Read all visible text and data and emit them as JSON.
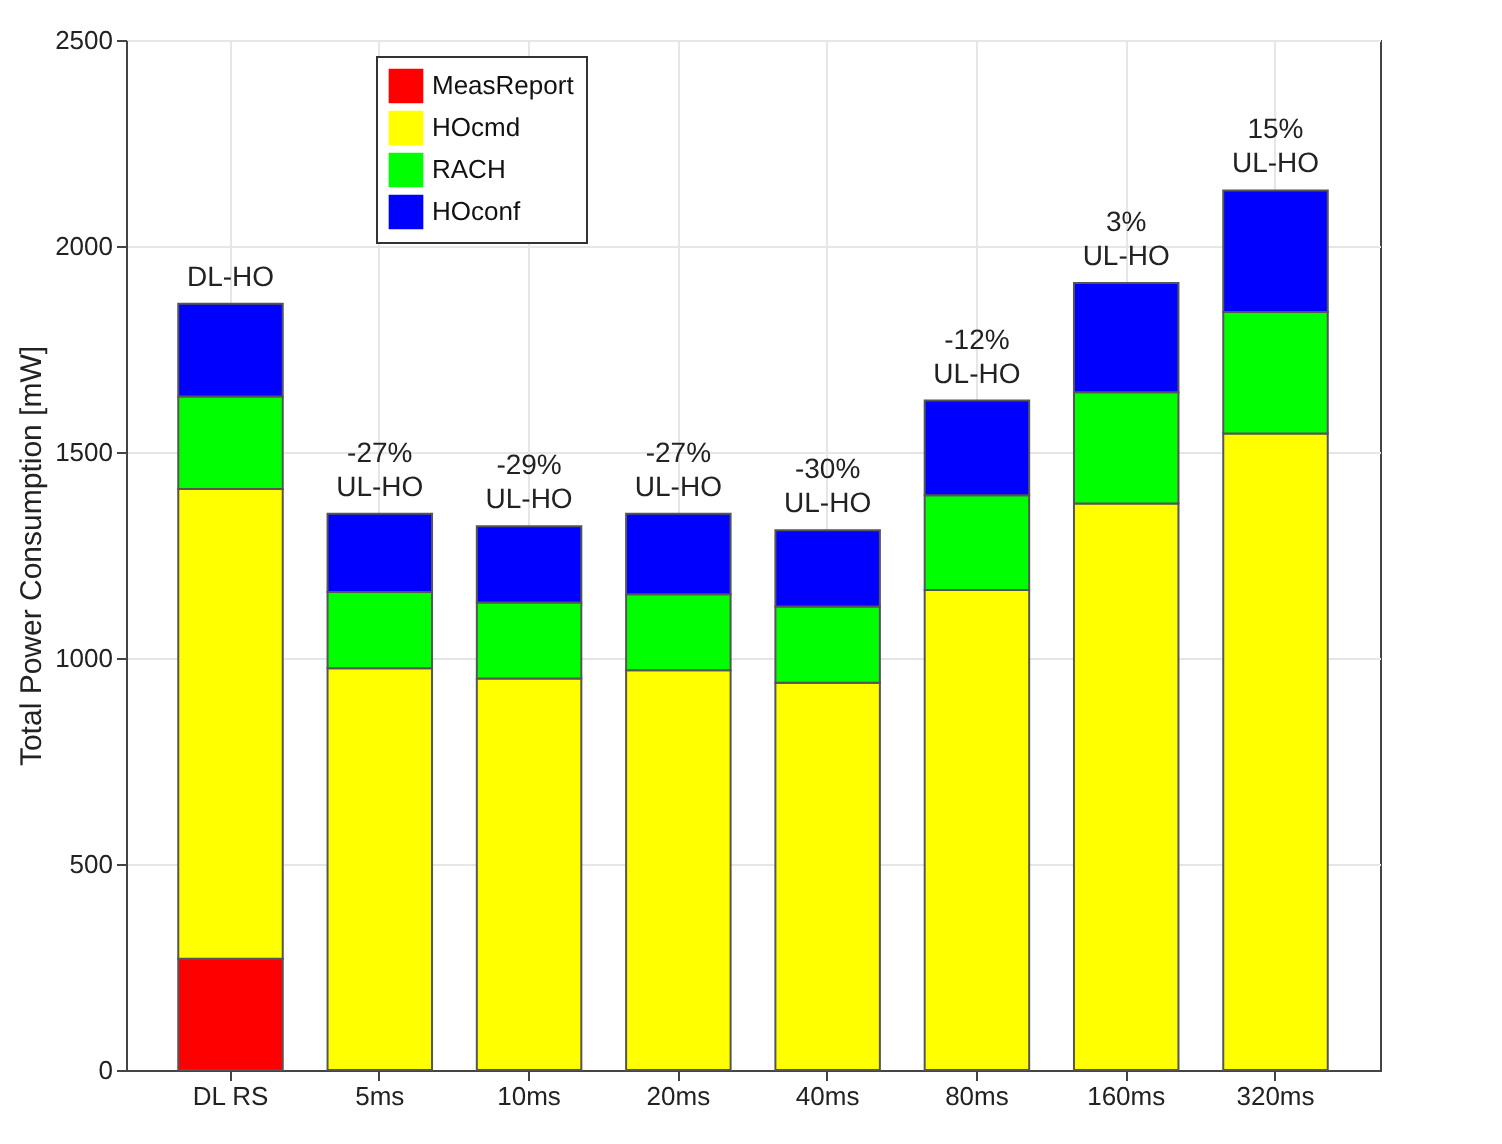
{
  "chart_data": {
    "type": "bar",
    "stacked": true,
    "ylabel": "Total Power Consumption [mW]",
    "categories": [
      "DL RS",
      "5ms",
      "10ms",
      "20ms",
      "40ms",
      "80ms",
      "160ms",
      "320ms"
    ],
    "series": [
      {
        "name": "MeasReport",
        "color": "#ff0000",
        "values": [
          270,
          0,
          0,
          0,
          0,
          0,
          0,
          0
        ]
      },
      {
        "name": "HOcmd",
        "color": "#ffff00",
        "values": [
          1140,
          975,
          950,
          970,
          940,
          1165,
          1375,
          1545
        ]
      },
      {
        "name": "RACH",
        "color": "#00ff00",
        "values": [
          225,
          185,
          185,
          185,
          185,
          230,
          270,
          295
        ]
      },
      {
        "name": "HOconf",
        "color": "#0000ff",
        "values": [
          225,
          190,
          185,
          195,
          185,
          230,
          265,
          295
        ]
      }
    ],
    "ylim": [
      0,
      2500
    ],
    "yticks": [
      0,
      500,
      1000,
      1500,
      2000,
      2500
    ],
    "grid": true,
    "legend": "top left",
    "annotations": [
      {
        "text": "DL-HO",
        "x": "DL RS",
        "y": 1860
      },
      {
        "text": "-27%\nUL-HO",
        "x": "5ms",
        "y": 1350
      },
      {
        "text": "-29%\nUL-HO",
        "x": "10ms",
        "y": 1320
      },
      {
        "text": "-27%\nUL-HO",
        "x": "20ms",
        "y": 1350
      },
      {
        "text": "-30%\nUL-HO",
        "x": "40ms",
        "y": 1310
      },
      {
        "text": "-12%\nUL-HO",
        "x": "80ms",
        "y": 1625
      },
      {
        "text": "3%\nUL-HO",
        "x": "160ms",
        "y": 1910
      },
      {
        "text": "15%\nUL-HO",
        "x": "320ms",
        "y": 2135
      }
    ]
  }
}
